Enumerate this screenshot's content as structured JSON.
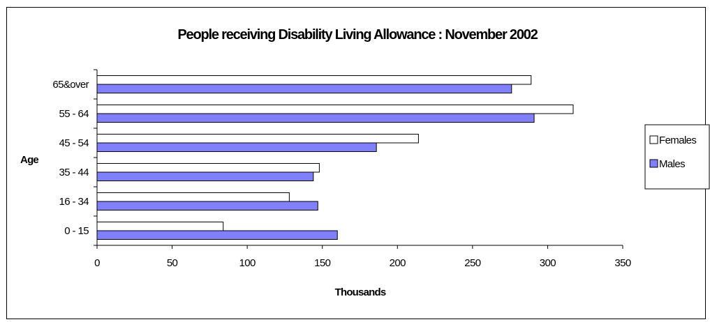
{
  "chart_data": {
    "type": "bar",
    "orientation": "horizontal",
    "title": "People receiving Disability Living Allowance : November 2002",
    "xlabel": "Thousands",
    "ylabel": "Age",
    "categories": [
      "0 - 15",
      "16 - 34",
      "35 - 44",
      "45 - 54",
      "55 - 64",
      "65&over"
    ],
    "series": [
      {
        "name": "Females",
        "color": "#ffffff",
        "values": [
          84,
          128,
          148,
          214,
          317,
          289
        ]
      },
      {
        "name": "Males",
        "color": "#8080ff",
        "values": [
          160,
          147,
          144,
          186,
          291,
          276
        ]
      }
    ],
    "xlim": [
      0,
      350
    ],
    "xticks": [
      0,
      50,
      100,
      150,
      200,
      250,
      300,
      350
    ],
    "grid": false,
    "legend": "right"
  }
}
